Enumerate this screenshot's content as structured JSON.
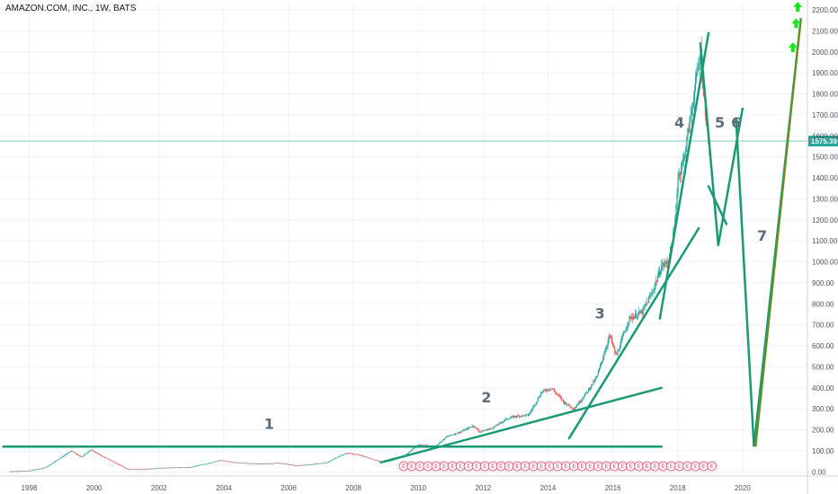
{
  "header": {
    "title": "AMAZON.COM, INC., 1W, BATS"
  },
  "colors": {
    "trend": "#1a9a73",
    "projection": "#6b8f1a",
    "arrow": "#19e619",
    "up": "#26a69a",
    "down": "#ef5350",
    "price_line": "#26a69a",
    "earnings": "#e0506b"
  },
  "chart_data": {
    "type": "candlestick",
    "title": "AMAZON.COM, INC., 1W, BATS",
    "x_ticks": [
      "1998",
      "2000",
      "2002",
      "2004",
      "2006",
      "2008",
      "2010",
      "2012",
      "2014",
      "2016",
      "2018",
      "2020"
    ],
    "y_ticks": [
      "0.00",
      "100.00",
      "200.00",
      "300.00",
      "400.00",
      "500.00",
      "600.00",
      "700.00",
      "800.00",
      "900.00",
      "1000.00",
      "1100.00",
      "1200.00",
      "1300.00",
      "1400.00",
      "1500.00",
      "1600.00",
      "1700.00",
      "1800.00",
      "1900.00",
      "2000.00",
      "2100.00",
      "2200.00"
    ],
    "ylim": [
      -20,
      2230
    ],
    "xlim": [
      1997.1,
      2022.0
    ],
    "last_price": "1575.39",
    "series": [
      {
        "points": [
          [
            1997.4,
            2
          ],
          [
            1998.0,
            5
          ],
          [
            1998.5,
            20
          ],
          [
            1998.9,
            60
          ],
          [
            1999.3,
            100
          ],
          [
            1999.6,
            70
          ],
          [
            1999.9,
            105
          ],
          [
            2000.3,
            70
          ],
          [
            2000.7,
            40
          ],
          [
            2001.0,
            15
          ],
          [
            2001.5,
            12
          ],
          [
            2002.0,
            18
          ],
          [
            2002.5,
            20
          ],
          [
            2003.0,
            22
          ],
          [
            2003.5,
            40
          ],
          [
            2003.9,
            55
          ],
          [
            2004.3,
            45
          ],
          [
            2004.8,
            40
          ],
          [
            2005.2,
            38
          ],
          [
            2005.7,
            42
          ],
          [
            2006.2,
            30
          ],
          [
            2006.7,
            35
          ],
          [
            2007.2,
            45
          ],
          [
            2007.5,
            70
          ],
          [
            2007.8,
            90
          ],
          [
            2008.2,
            80
          ],
          [
            2008.7,
            55
          ],
          [
            2008.9,
            45
          ],
          [
            2009.2,
            55
          ],
          [
            2009.6,
            80
          ],
          [
            2010.0,
            130
          ],
          [
            2010.5,
            120
          ],
          [
            2010.9,
            170
          ],
          [
            2011.3,
            190
          ],
          [
            2011.7,
            220
          ],
          [
            2011.9,
            190
          ],
          [
            2012.3,
            210
          ],
          [
            2012.7,
            250
          ],
          [
            2013.0,
            265
          ],
          [
            2013.4,
            270
          ],
          [
            2013.8,
            380
          ],
          [
            2014.1,
            400
          ],
          [
            2014.5,
            330
          ],
          [
            2014.8,
            300
          ],
          [
            2015.2,
            380
          ],
          [
            2015.5,
            450
          ],
          [
            2015.9,
            650
          ],
          [
            2016.1,
            550
          ],
          [
            2016.5,
            730
          ],
          [
            2016.9,
            760
          ],
          [
            2017.2,
            850
          ],
          [
            2017.5,
            980
          ],
          [
            2017.7,
            1000
          ],
          [
            2017.9,
            1150
          ],
          [
            2018.0,
            1400
          ],
          [
            2018.2,
            1500
          ],
          [
            2018.4,
            1700
          ],
          [
            2018.6,
            1900
          ],
          [
            2018.7,
            2000
          ],
          [
            2018.8,
            1800
          ],
          [
            2018.9,
            1650
          ],
          [
            2019.0,
            1500
          ],
          [
            2019.02,
            1575
          ]
        ]
      }
    ],
    "earnings_markers": {
      "label": "E",
      "count": 39,
      "from": 2009.55,
      "to": 2019.05
    },
    "annotations": [
      {
        "label": "1",
        "x": 2005.4,
        "y": 205
      },
      {
        "label": "2",
        "x": 2012.1,
        "y": 330
      },
      {
        "label": "3",
        "x": 2015.6,
        "y": 730
      },
      {
        "label": "4",
        "x": 2018.05,
        "y": 1640
      },
      {
        "label": "5",
        "x": 2019.3,
        "y": 1640
      },
      {
        "label": "6",
        "x": 2019.8,
        "y": 1640
      },
      {
        "label": "7",
        "x": 2020.6,
        "y": 1100
      }
    ],
    "trendlines": [
      {
        "from": [
          1997.2,
          120
        ],
        "to": [
          2017.5,
          120
        ]
      },
      {
        "from": [
          2008.85,
          45
        ],
        "to": [
          2017.5,
          400
        ]
      },
      {
        "from": [
          2014.65,
          160
        ],
        "to": [
          2018.65,
          1160
        ]
      },
      {
        "from": [
          2017.45,
          730
        ],
        "to": [
          2018.95,
          2090
        ]
      },
      {
        "from": [
          2018.7,
          2040
        ],
        "to": [
          2019.25,
          1080
        ]
      },
      {
        "from": [
          2019.25,
          1080
        ],
        "to": [
          2020.0,
          1730
        ]
      },
      {
        "from": [
          2018.95,
          1360
        ],
        "to": [
          2019.5,
          1180
        ]
      }
    ],
    "projection": {
      "points": [
        [
          2019.8,
          1680
        ],
        [
          2020.35,
          120
        ],
        [
          2021.8,
          2160
        ]
      ]
    },
    "arrows": [
      {
        "x": 2021.55,
        "y": 2020
      },
      {
        "x": 2021.65,
        "y": 2135
      },
      {
        "x": 2021.7,
        "y": 2245
      }
    ]
  }
}
